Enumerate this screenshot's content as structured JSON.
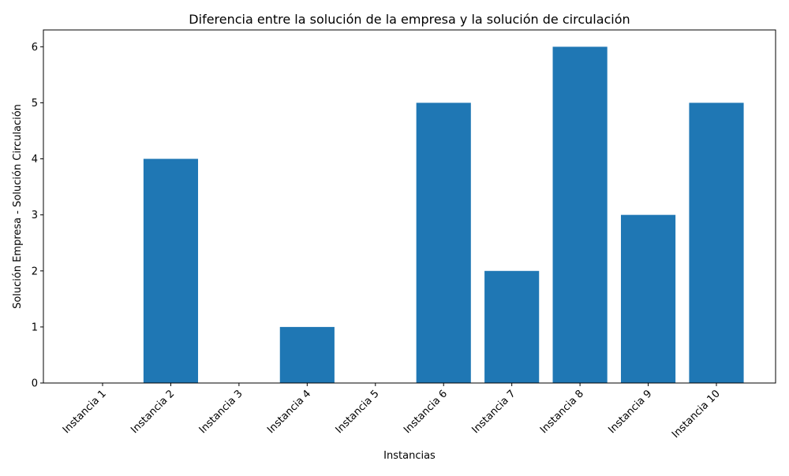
{
  "chart_data": {
    "type": "bar",
    "title": "Diferencia entre la solución de la empresa y la solución de circulación",
    "xlabel": "Instancias",
    "ylabel": "Solución Empresa - Solución Circulación",
    "categories": [
      "Instancia 1",
      "Instancia 2",
      "Instancia 3",
      "Instancia 4",
      "Instancia 5",
      "Instancia 6",
      "Instancia 7",
      "Instancia 8",
      "Instancia 9",
      "Instancia 10"
    ],
    "values": [
      0,
      4,
      0,
      1,
      0,
      5,
      2,
      6,
      3,
      5
    ],
    "ylim": [
      0,
      6.3
    ],
    "yticks": [
      0,
      1,
      2,
      3,
      4,
      5,
      6
    ],
    "bar_color": "#1f77b4",
    "grid": false,
    "legend": "none"
  }
}
